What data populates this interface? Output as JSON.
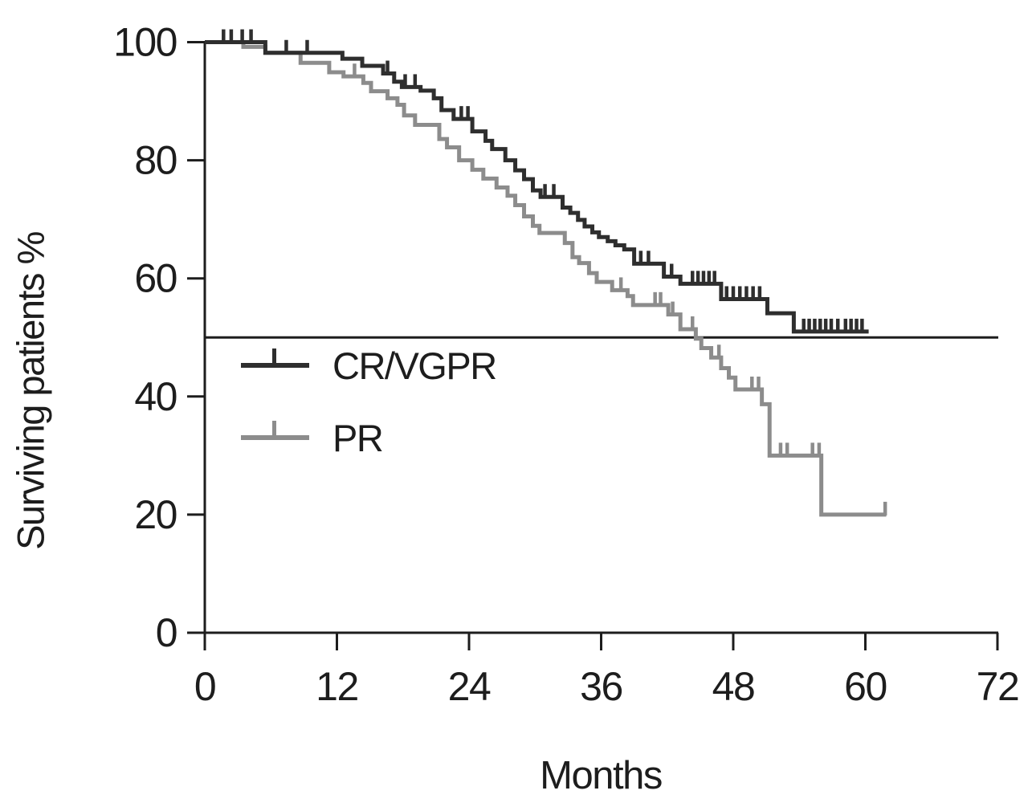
{
  "figure": {
    "x_axis_title": "Months",
    "y_axis_title": "Surviving patients %"
  },
  "legend": {
    "items": [
      {
        "label": "CR/VGPR",
        "color": "#2e2e2e"
      },
      {
        "label": "PR",
        "color": "#8c8c8c"
      }
    ]
  },
  "colors": {
    "axis": "#1d1d1d",
    "reference_line": "#1d1d1d",
    "background": "#ffffff"
  },
  "chart_data": {
    "type": "line",
    "subtype": "kaplan-meier-step",
    "title": "",
    "xlabel": "Months",
    "ylabel": "Surviving patients %",
    "xlim": [
      0,
      72
    ],
    "ylim": [
      0,
      100
    ],
    "x_ticks": [
      0,
      12,
      24,
      36,
      48,
      60,
      72
    ],
    "y_ticks": [
      0,
      20,
      40,
      60,
      80,
      100
    ],
    "grid": false,
    "legend_position": "inside-left-middle",
    "reference_line_y": 50,
    "series": [
      {
        "name": "CR/VGPR",
        "color": "#2e2e2e",
        "end_month": 60.3,
        "steps": [
          [
            0,
            100
          ],
          [
            5.5,
            98.2
          ],
          [
            12.5,
            97.2
          ],
          [
            14.3,
            96.0
          ],
          [
            16.2,
            94.7
          ],
          [
            17.2,
            93.3
          ],
          [
            17.9,
            92.4
          ],
          [
            19.6,
            91.8
          ],
          [
            20.8,
            90.5
          ],
          [
            21.5,
            88.5
          ],
          [
            22.6,
            87.0
          ],
          [
            24.3,
            84.9
          ],
          [
            25.5,
            83.3
          ],
          [
            26.1,
            81.9
          ],
          [
            27.3,
            80.0
          ],
          [
            28.2,
            78.3
          ],
          [
            29.0,
            76.8
          ],
          [
            29.8,
            74.9
          ],
          [
            30.5,
            73.8
          ],
          [
            32.5,
            72.0
          ],
          [
            33.2,
            71.1
          ],
          [
            33.9,
            69.9
          ],
          [
            34.5,
            68.8
          ],
          [
            35.2,
            67.8
          ],
          [
            35.8,
            67.0
          ],
          [
            36.6,
            66.3
          ],
          [
            37.3,
            65.6
          ],
          [
            38.1,
            64.9
          ],
          [
            39.0,
            62.5
          ],
          [
            41.7,
            60.3
          ],
          [
            43.2,
            59.1
          ],
          [
            46.9,
            56.5
          ],
          [
            51.1,
            54.1
          ],
          [
            53.5,
            51.0
          ]
        ],
        "censor_marks": [
          1.7,
          2.4,
          3.4,
          4.2,
          7.4,
          9.3,
          16.6,
          18.2,
          19.1,
          23.3,
          23.9,
          30.9,
          31.7,
          39.6,
          40.3,
          42.4,
          44.3,
          44.8,
          45.3,
          45.8,
          46.3,
          47.4,
          48.0,
          48.6,
          49.2,
          49.8,
          50.4,
          54.4,
          54.9,
          55.4,
          55.9,
          56.4,
          56.9,
          57.5,
          58.2,
          58.7,
          59.2,
          59.7
        ]
      },
      {
        "name": "PR",
        "color": "#8c8c8c",
        "end_month": 61.9,
        "steps": [
          [
            0,
            100
          ],
          [
            3.5,
            99.2
          ],
          [
            5.5,
            98.2
          ],
          [
            8.7,
            96.5
          ],
          [
            11.3,
            94.9
          ],
          [
            12.6,
            94.2
          ],
          [
            14.4,
            93.1
          ],
          [
            15.1,
            91.7
          ],
          [
            16.6,
            90.5
          ],
          [
            17.5,
            89.4
          ],
          [
            18.1,
            87.6
          ],
          [
            19.1,
            86.0
          ],
          [
            21.3,
            83.6
          ],
          [
            22.0,
            82.2
          ],
          [
            23.1,
            80.0
          ],
          [
            24.3,
            78.4
          ],
          [
            25.3,
            76.9
          ],
          [
            26.5,
            75.4
          ],
          [
            27.5,
            74.0
          ],
          [
            28.2,
            72.4
          ],
          [
            29.0,
            70.5
          ],
          [
            29.8,
            68.9
          ],
          [
            30.4,
            67.7
          ],
          [
            32.7,
            66.0
          ],
          [
            33.4,
            63.6
          ],
          [
            34.0,
            62.6
          ],
          [
            34.9,
            60.9
          ],
          [
            35.6,
            59.4
          ],
          [
            37.0,
            58.0
          ],
          [
            38.4,
            57.0
          ],
          [
            38.9,
            55.5
          ],
          [
            42.1,
            53.9
          ],
          [
            43.2,
            51.4
          ],
          [
            44.6,
            49.8
          ],
          [
            45.1,
            48.2
          ],
          [
            46.0,
            46.6
          ],
          [
            46.9,
            44.8
          ],
          [
            47.6,
            43.2
          ],
          [
            48.2,
            41.2
          ],
          [
            50.6,
            38.7
          ],
          [
            51.3,
            30.0
          ],
          [
            56.0,
            20.0
          ]
        ],
        "censor_marks": [
          13.6,
          37.8,
          40.9,
          41.4,
          42.5,
          44.3,
          46.7,
          49.7,
          50.3,
          52.3,
          52.9,
          55.2,
          55.8,
          61.8
        ]
      }
    ]
  }
}
